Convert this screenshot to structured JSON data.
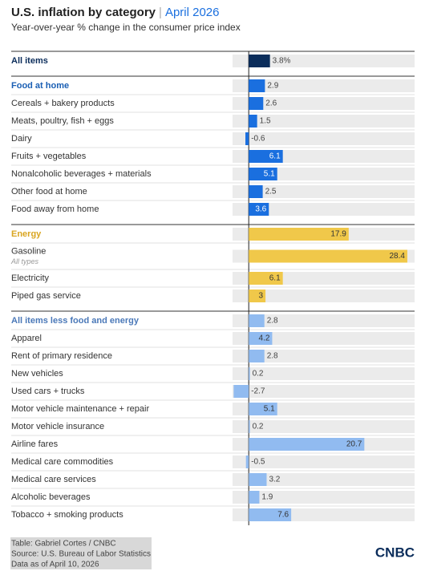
{
  "chart_data": {
    "type": "bar",
    "title": "U.S. inflation by category",
    "separator": "|",
    "date": "April 2026",
    "subtitle": "Year-over-year % change in the consumer price index",
    "xlim": [
      -2.9,
      29.7
    ],
    "groups": [
      {
        "color": "#0b2d5b",
        "label_color": "#0b2d5b",
        "value_label_color": "#ffffff",
        "rows": [
          {
            "label": "All items",
            "value": 3.8,
            "value_label": "3.8%"
          }
        ]
      },
      {
        "color": "#1a6fdf",
        "label_color": "#1a5fb4",
        "value_label_color": "#ffffff",
        "rows": [
          {
            "label": "Food at home",
            "value": 2.9
          },
          {
            "label": "Cereals + bakery products",
            "value": 2.6
          },
          {
            "label": "Meats, poultry, fish + eggs",
            "value": 1.5
          },
          {
            "label": "Dairy",
            "value": -0.6
          },
          {
            "label": "Fruits + vegetables",
            "value": 6.1
          },
          {
            "label": "Nonalcoholic beverages + materials",
            "value": 5.1
          },
          {
            "label": "Other food at home",
            "value": 2.5
          },
          {
            "label": "Food away from home",
            "value": 3.6
          }
        ]
      },
      {
        "color": "#f0c84a",
        "label_color": "#d9a520",
        "value_label_color": "#333333",
        "rows": [
          {
            "label": "Energy",
            "value": 17.9
          },
          {
            "label": "Gasoline",
            "sublabel": "All types",
            "value": 28.4
          },
          {
            "label": "Electricity",
            "value": 6.1
          },
          {
            "label": "Piped gas service",
            "value": 3
          }
        ]
      },
      {
        "color": "#91bbf0",
        "label_color": "#4a78b8",
        "value_label_color": "#333333",
        "rows": [
          {
            "label": "All items less food and energy",
            "value": 2.8
          },
          {
            "label": "Apparel",
            "value": 4.2
          },
          {
            "label": "Rent of primary residence",
            "value": 2.8
          },
          {
            "label": "New vehicles",
            "value": 0.2
          },
          {
            "label": "Used cars + trucks",
            "value": -2.7
          },
          {
            "label": "Motor vehicle maintenance + repair",
            "value": 5.1
          },
          {
            "label": "Motor vehicle insurance",
            "value": 0.2
          },
          {
            "label": "Airline fares",
            "value": 20.7
          },
          {
            "label": "Medical care commodities",
            "value": -0.5
          },
          {
            "label": "Medical care services",
            "value": 3.2
          },
          {
            "label": "Alcoholic beverages",
            "value": 1.9
          },
          {
            "label": "Tobacco + smoking products",
            "value": 7.6
          }
        ]
      }
    ]
  },
  "footer": {
    "lines": [
      "Table: Gabriel Cortes / CNBC",
      "Source: U.S. Bureau of Labor Statistics",
      "Data as of April 10, 2026"
    ],
    "logo": "CNBC"
  }
}
